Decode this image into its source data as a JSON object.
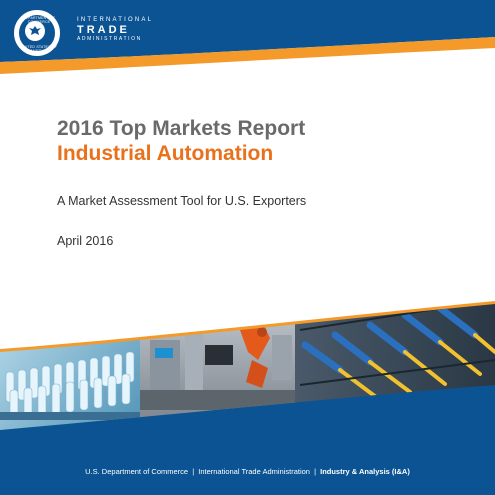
{
  "header": {
    "seal": {
      "name": "department-of-commerce-seal",
      "text_top": "DEPARTMENT OF COMMERCE",
      "text_bottom": "UNITED STATES OF AMERICA"
    },
    "logo": {
      "line1": "INTERNATIONAL",
      "line2": "TRADE",
      "line3": "ADMINISTRATION"
    }
  },
  "report": {
    "title": "2016 Top Markets Report",
    "sector": "Industrial Automation",
    "subtitle": "A Market Assessment Tool for U.S. Exporters",
    "date": "April 2016"
  },
  "footer": {
    "part1": "U.S. Department of Commerce",
    "part2": "International Trade Administration",
    "part3": "Industry & Analysis (I&A)",
    "separator": "|"
  },
  "colors": {
    "brand_blue": "#0b5392",
    "accent_orange": "#f39a2a",
    "title_gray": "#6a6a6a",
    "sector_orange": "#e9711c"
  }
}
